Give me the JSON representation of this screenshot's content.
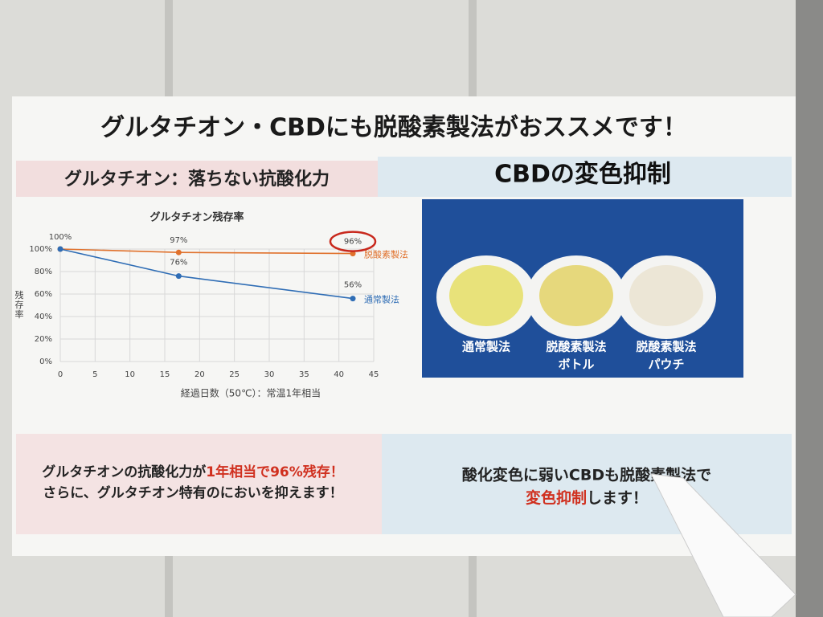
{
  "poster": {
    "header": "グルタチオン・CBDにも脱酸素製法がおススメです！",
    "left_heading": "グルタチオン：落ちない抗酸化力",
    "right_heading": "CBDの変色抑制",
    "photo_labels": [
      {
        "lines": [
          "通常製法"
        ]
      },
      {
        "lines": [
          "脱酸素製法",
          "ボトル"
        ]
      },
      {
        "lines": [
          "脱酸素製法",
          "パウチ"
        ]
      }
    ],
    "left_message": [
      "グルタチオンの抗酸化力が",
      "1年相当で96%残存！",
      "さらに、グルタチオン特有のにおいを抑えます！"
    ],
    "right_message": [
      "酸化変色に弱いCBDも脱酸素製法で",
      "変色抑制",
      "します！"
    ]
  },
  "chart_data": {
    "type": "line",
    "title": "グルタチオン残存率",
    "x_label": "経過日数（50℃）：常温1年相当",
    "y_label": "残存率",
    "x": [
      0,
      17,
      42
    ],
    "series": [
      {
        "name": "脱酸素製法",
        "color": "#e0712c",
        "values": [
          100,
          97,
          96
        ],
        "value_labels": [
          "100%",
          "97%",
          "96%"
        ]
      },
      {
        "name": "通常製法",
        "color": "#2f6db5",
        "values": [
          100,
          76,
          56
        ],
        "value_labels": [
          null,
          "76%",
          "56%"
        ]
      }
    ],
    "xlim": [
      0,
      45
    ],
    "xticks": [
      0,
      5,
      10,
      15,
      20,
      25,
      30,
      35,
      40,
      45
    ],
    "ylim": [
      0,
      100
    ],
    "yticks": [
      {
        "value": 0,
        "label": "0%"
      },
      {
        "value": 20,
        "label": "20%"
      },
      {
        "value": 40,
        "label": "40%"
      },
      {
        "value": 60,
        "label": "60%"
      },
      {
        "value": 80,
        "label": "80%"
      },
      {
        "value": 100,
        "label": "100%"
      }
    ],
    "grid": true
  }
}
